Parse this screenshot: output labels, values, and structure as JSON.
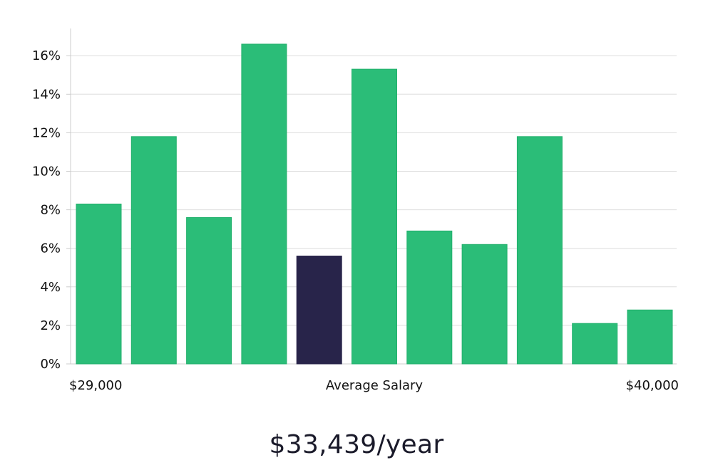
{
  "chart_data": {
    "type": "bar",
    "title": "",
    "xlabel": "Average Salary",
    "ylabel": "",
    "x_range_labels": {
      "min": "$29,000",
      "max": "$40,000"
    },
    "ylim": [
      0,
      17.5
    ],
    "yticks": [
      0,
      2,
      4,
      6,
      8,
      10,
      12,
      14,
      16
    ],
    "ytick_suffix": "%",
    "grid": true,
    "values": [
      8.3,
      11.8,
      7.6,
      16.6,
      5.6,
      15.3,
      6.9,
      6.2,
      11.8,
      2.1,
      2.8
    ],
    "highlight_index": 4,
    "colors": {
      "bar": "#2bbd78",
      "bar_stroke": "#22b06c",
      "highlight": "#28244a",
      "grid": "#dddddd",
      "axis": "#cccccc"
    }
  },
  "summary": {
    "salary": "$33,439/year"
  }
}
